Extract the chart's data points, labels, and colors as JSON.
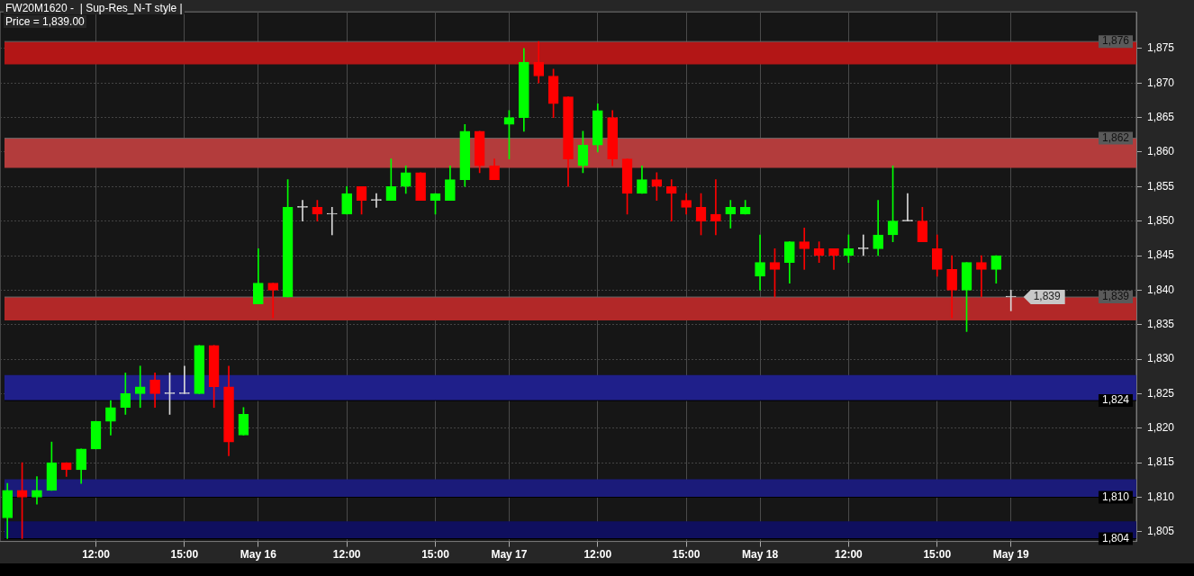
{
  "chart_data": {
    "type": "candlestick",
    "title": "FW20M1620 -  | Sup-Res_N-T style |",
    "subtitle": "Price = 1,839.00",
    "categories": [
      null,
      null,
      null,
      null,
      null,
      null,
      "12:00",
      null,
      null,
      null,
      null,
      null,
      "15:00",
      null,
      null,
      null,
      null,
      "May 16",
      null,
      null,
      null,
      null,
      null,
      "12:00",
      null,
      null,
      null,
      null,
      null,
      "15:00",
      null,
      null,
      null,
      null,
      "May 17",
      null,
      null,
      null,
      null,
      null,
      "12:00",
      null,
      null,
      null,
      null,
      null,
      "15:00",
      null,
      null,
      null,
      null,
      "May 18",
      null,
      null,
      null,
      null,
      null,
      "12:00",
      null,
      null,
      null,
      null,
      null,
      "15:00",
      null,
      null,
      null,
      null,
      "May 19",
      null,
      null,
      null,
      null,
      null,
      null,
      null,
      null
    ],
    "ohlc": [
      [
        1807,
        1812,
        1804,
        1811
      ],
      [
        1811,
        1815,
        1804,
        1810
      ],
      [
        1810,
        1813,
        1809,
        1811
      ],
      [
        1811,
        1818,
        1811,
        1815
      ],
      [
        1815,
        1815,
        1813,
        1814
      ],
      [
        1814,
        1817,
        1812,
        1817
      ],
      [
        1817,
        1821,
        1817,
        1821
      ],
      [
        1821,
        1824,
        1819,
        1823
      ],
      [
        1823,
        1828,
        1822,
        1825
      ],
      [
        1825,
        1829,
        1823,
        1826
      ],
      [
        1827,
        1828,
        1823,
        1825
      ],
      [
        1825,
        1828,
        1822,
        1825
      ],
      [
        1825,
        1829,
        1825,
        1825
      ],
      [
        1825,
        1832,
        1825,
        1832
      ],
      [
        1832,
        1832,
        1823,
        1826
      ],
      [
        1826,
        1829,
        1816,
        1818
      ],
      [
        1819,
        1823,
        1819,
        1822
      ],
      [
        1838,
        1846,
        1838,
        1841
      ],
      [
        1841,
        1841,
        1836,
        1840
      ],
      [
        1839,
        1856,
        1839,
        1852
      ],
      [
        1852,
        1853,
        1850,
        1852
      ],
      [
        1852,
        1853,
        1850,
        1851
      ],
      [
        1851,
        1852,
        1848,
        1851
      ],
      [
        1851,
        1855,
        1851,
        1854
      ],
      [
        1855,
        1855,
        1851,
        1853
      ],
      [
        1853,
        1854,
        1852,
        1853
      ],
      [
        1853,
        1859,
        1853,
        1855
      ],
      [
        1855,
        1858,
        1854,
        1857
      ],
      [
        1857,
        1857,
        1853,
        1853
      ],
      [
        1853,
        1854,
        1851,
        1854
      ],
      [
        1853,
        1858,
        1853,
        1856
      ],
      [
        1856,
        1864,
        1855,
        1863
      ],
      [
        1863,
        1863,
        1857,
        1858
      ],
      [
        1858,
        1859,
        1856,
        1856
      ],
      [
        1864,
        1866,
        1859,
        1865
      ],
      [
        1865,
        1875,
        1863,
        1873
      ],
      [
        1873,
        1876,
        1870,
        1871
      ],
      [
        1871,
        1872,
        1865,
        1867
      ],
      [
        1868,
        1868,
        1855,
        1859
      ],
      [
        1858,
        1863,
        1857,
        1861
      ],
      [
        1861,
        1867,
        1860,
        1866
      ],
      [
        1865,
        1866,
        1858,
        1859
      ],
      [
        1859,
        1859,
        1851,
        1854
      ],
      [
        1854,
        1858,
        1854,
        1856
      ],
      [
        1856,
        1857,
        1853,
        1855
      ],
      [
        1855,
        1856,
        1850,
        1854
      ],
      [
        1853,
        1854,
        1851,
        1852
      ],
      [
        1852,
        1854,
        1848,
        1850
      ],
      [
        1851,
        1856,
        1848,
        1850
      ],
      [
        1851,
        1853,
        1849,
        1852
      ],
      [
        1851,
        1853,
        1851,
        1852
      ],
      [
        1842,
        1848,
        1840,
        1844
      ],
      [
        1844,
        1846,
        1839,
        1843
      ],
      [
        1844,
        1847,
        1841,
        1847
      ],
      [
        1847,
        1849,
        1843,
        1846
      ],
      [
        1846,
        1847,
        1844,
        1845
      ],
      [
        1846,
        1846,
        1843,
        1845
      ],
      [
        1845,
        1848,
        1844,
        1846
      ],
      [
        1846,
        1848,
        1845,
        1846
      ],
      [
        1846,
        1853,
        1845,
        1848
      ],
      [
        1848,
        1858,
        1847,
        1850
      ],
      [
        1850,
        1854,
        1850,
        1850
      ],
      [
        1850,
        1852,
        1847,
        1847
      ],
      [
        1846,
        1848,
        1842,
        1843
      ],
      [
        1843,
        1845,
        1836,
        1840
      ],
      [
        1840,
        1844,
        1834,
        1844
      ],
      [
        1844,
        1845,
        1839,
        1843
      ],
      [
        1843,
        1845,
        1841,
        1845
      ],
      [
        1839,
        1840,
        1837,
        1839
      ],
      null,
      null,
      null,
      null,
      null,
      null,
      null,
      null
    ],
    "colors": [
      "#00ff00",
      "#ff0000",
      "#00ff00",
      "#00ff00",
      "#ff0000",
      "#00ff00",
      "#00ff00",
      "#00ff00",
      "#00ff00",
      "#00ff00",
      "#ff0000",
      "#d8d8d8",
      "#d8d8d8",
      "#00ff00",
      "#ff0000",
      "#ff0000",
      "#00ff00",
      "#00ff00",
      "#ff0000",
      "#00ff00",
      "#d8d8d8",
      "#ff0000",
      "#d8d8d8",
      "#00ff00",
      "#ff0000",
      "#d8d8d8",
      "#00ff00",
      "#00ff00",
      "#ff0000",
      "#00ff00",
      "#00ff00",
      "#00ff00",
      "#ff0000",
      "#ff0000",
      "#00ff00",
      "#00ff00",
      "#ff0000",
      "#ff0000",
      "#ff0000",
      "#00ff00",
      "#00ff00",
      "#ff0000",
      "#ff0000",
      "#00ff00",
      "#ff0000",
      "#ff0000",
      "#ff0000",
      "#ff0000",
      "#ff0000",
      "#00ff00",
      "#00ff00",
      "#00ff00",
      "#ff0000",
      "#00ff00",
      "#ff0000",
      "#ff0000",
      "#ff0000",
      "#00ff00",
      "#d8d8d8",
      "#00ff00",
      "#00ff00",
      "#d8d8d8",
      "#ff0000",
      "#ff0000",
      "#ff0000",
      "#00ff00",
      "#ff0000",
      "#00ff00",
      "#d8d8d8",
      null,
      null,
      null,
      null,
      null,
      null,
      null,
      null
    ],
    "ylim": [
      1803.6,
      1880.3
    ],
    "yticks": [
      {
        "value": 1805,
        "label": "1,805"
      },
      {
        "value": 1810,
        "label": "1,810"
      },
      {
        "value": 1815,
        "label": "1,815"
      },
      {
        "value": 1820,
        "label": "1,820"
      },
      {
        "value": 1825,
        "label": "1,825"
      },
      {
        "value": 1830,
        "label": "1,830"
      },
      {
        "value": 1835,
        "label": "1,835"
      },
      {
        "value": 1840,
        "label": "1,840"
      },
      {
        "value": 1845,
        "label": "1,845"
      },
      {
        "value": 1850,
        "label": "1,850"
      },
      {
        "value": 1855,
        "label": "1,855"
      },
      {
        "value": 1860,
        "label": "1,860"
      },
      {
        "value": 1865,
        "label": "1,865"
      },
      {
        "value": 1870,
        "label": "1,870"
      },
      {
        "value": 1875,
        "label": "1,875"
      }
    ],
    "grid": true,
    "legend": false,
    "bands": [
      {
        "axis": "y",
        "from": 1872.7,
        "to": 1876,
        "color": "#b31616"
      },
      {
        "axis": "y",
        "from": 1857.7,
        "to": 1862,
        "color": "#b33c3c"
      },
      {
        "axis": "y",
        "from": 1835.6,
        "to": 1839,
        "color": "#b22828"
      },
      {
        "axis": "y",
        "from": 1824,
        "to": 1827.7,
        "color": "#1f1f8a"
      },
      {
        "axis": "y",
        "from": 1810,
        "to": 1812.6,
        "color": "#1b1b7a"
      },
      {
        "axis": "y",
        "from": 1804,
        "to": 1806.5,
        "color": "#0f0f5e"
      }
    ],
    "ref_lines": [
      {
        "axis": "y",
        "value": 1876,
        "label": "1,876",
        "color": "#5a5a5a"
      },
      {
        "axis": "y",
        "value": 1862,
        "label": "1,862",
        "color": "#5a5a5a"
      },
      {
        "axis": "y",
        "value": 1839,
        "label": "1,839",
        "color": "#5a5a5a"
      },
      {
        "axis": "y",
        "value": 1824,
        "label": "1,824",
        "color": "#000000"
      },
      {
        "axis": "y",
        "value": 1810,
        "label": "1,810",
        "color": "#000000"
      },
      {
        "axis": "y",
        "value": 1804,
        "label": "1,804",
        "color": "#000000"
      }
    ],
    "annotations": [
      "1,839"
    ]
  }
}
